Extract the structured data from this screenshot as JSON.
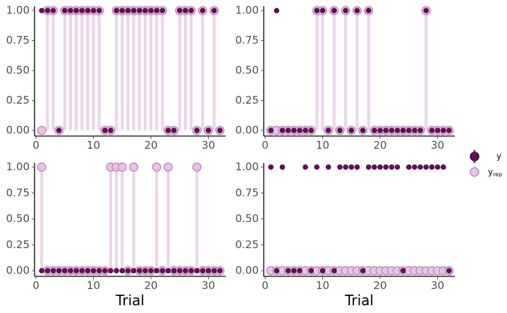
{
  "colors": {
    "y_point": "#6b0a5e",
    "y_point_stroke": "#3f0637",
    "yrep_point": "#e6c6e4",
    "yrep_point_stroke": "#c38ac0",
    "yrep_line": "#ecd3eb",
    "axis": "#000000",
    "tick_text": "#4d4d4d"
  },
  "legend": {
    "y_label": "y",
    "yrep_label_main": "y",
    "yrep_label_sub": "rep"
  },
  "chart_data": [
    {
      "type": "scatter",
      "panel": "top-left",
      "xlabel": "",
      "ylabel": "",
      "xlim": [
        0,
        33
      ],
      "ylim": [
        0,
        1
      ],
      "x_ticks": [
        0,
        10,
        20,
        30
      ],
      "y_ticks": [
        "0.00",
        "0.25",
        "0.50",
        "0.75",
        "1.00"
      ],
      "grid": false,
      "series": [
        {
          "name": "y",
          "x": [
            1,
            2,
            3,
            4,
            5,
            6,
            7,
            8,
            9,
            10,
            11,
            12,
            13,
            14,
            15,
            16,
            17,
            18,
            19,
            20,
            21,
            22,
            23,
            24,
            25,
            26,
            27,
            28,
            29,
            30,
            31,
            32
          ],
          "values": [
            1,
            1,
            1,
            0,
            1,
            1,
            1,
            1,
            1,
            1,
            1,
            0,
            0,
            1,
            1,
            1,
            1,
            1,
            1,
            1,
            1,
            1,
            0,
            0,
            1,
            1,
            1,
            0,
            1,
            0,
            1,
            0
          ]
        },
        {
          "name": "y_rep",
          "x": [
            1,
            2,
            3,
            4,
            5,
            6,
            7,
            8,
            9,
            10,
            11,
            12,
            13,
            14,
            15,
            16,
            17,
            18,
            19,
            20,
            21,
            22,
            23,
            24,
            25,
            26,
            27,
            28,
            29,
            30,
            31,
            32
          ],
          "values": [
            0,
            1,
            1,
            0,
            1,
            1,
            1,
            1,
            1,
            1,
            1,
            0,
            0,
            1,
            1,
            1,
            1,
            1,
            1,
            1,
            1,
            1,
            0,
            0,
            1,
            1,
            1,
            0,
            1,
            0,
            1,
            0
          ]
        }
      ]
    },
    {
      "type": "scatter",
      "panel": "top-right",
      "xlabel": "",
      "ylabel": "",
      "xlim": [
        0,
        33
      ],
      "ylim": [
        0,
        1
      ],
      "x_ticks": [
        0,
        10,
        20,
        30
      ],
      "y_ticks": [
        "0.00",
        "0.25",
        "0.50",
        "0.75",
        "1.00"
      ],
      "grid": false,
      "series": [
        {
          "name": "y",
          "x": [
            1,
            2,
            3,
            4,
            5,
            6,
            7,
            8,
            9,
            10,
            11,
            12,
            13,
            14,
            15,
            16,
            17,
            18,
            19,
            20,
            21,
            22,
            23,
            24,
            25,
            26,
            27,
            28,
            29,
            30,
            31,
            32
          ],
          "values": [
            0,
            1,
            0,
            0,
            0,
            0,
            0,
            0,
            1,
            1,
            0,
            1,
            0,
            1,
            0,
            1,
            0,
            1,
            0,
            0,
            0,
            0,
            0,
            0,
            0,
            0,
            0,
            1,
            0,
            0,
            0,
            0
          ]
        },
        {
          "name": "y_rep",
          "x": [
            1,
            2,
            3,
            4,
            5,
            6,
            7,
            8,
            9,
            10,
            11,
            12,
            13,
            14,
            15,
            16,
            17,
            18,
            19,
            20,
            21,
            22,
            23,
            24,
            25,
            26,
            27,
            28,
            29,
            30,
            31,
            32
          ],
          "values": [
            0,
            0,
            0,
            0,
            0,
            0,
            0,
            0,
            1,
            1,
            0,
            1,
            0,
            1,
            0,
            1,
            0,
            1,
            0,
            0,
            0,
            0,
            0,
            0,
            0,
            0,
            0,
            1,
            0,
            0,
            0,
            0
          ]
        }
      ]
    },
    {
      "type": "scatter",
      "panel": "bottom-left",
      "xlabel": "Trial",
      "ylabel": "",
      "xlim": [
        0,
        33
      ],
      "ylim": [
        0,
        1
      ],
      "x_ticks": [
        0,
        10,
        20,
        30
      ],
      "y_ticks": [
        "0.00",
        "0.25",
        "0.50",
        "0.75",
        "1.00"
      ],
      "grid": false,
      "series": [
        {
          "name": "y",
          "x": [
            1,
            2,
            3,
            4,
            5,
            6,
            7,
            8,
            9,
            10,
            11,
            12,
            13,
            14,
            15,
            16,
            17,
            18,
            19,
            20,
            21,
            22,
            23,
            24,
            25,
            26,
            27,
            28,
            29,
            30,
            31,
            32
          ],
          "values": [
            0,
            0,
            0,
            0,
            0,
            0,
            0,
            0,
            0,
            0,
            0,
            0,
            0,
            0,
            0,
            0,
            0,
            0,
            0,
            0,
            0,
            0,
            0,
            0,
            0,
            0,
            0,
            0,
            0,
            0,
            0,
            0
          ]
        },
        {
          "name": "y_rep",
          "x": [
            1,
            2,
            3,
            4,
            5,
            6,
            7,
            8,
            9,
            10,
            11,
            12,
            13,
            14,
            15,
            16,
            17,
            18,
            19,
            20,
            21,
            22,
            23,
            24,
            25,
            26,
            27,
            28,
            29,
            30,
            31,
            32
          ],
          "values": [
            1,
            0,
            0,
            0,
            0,
            0,
            0,
            0,
            0,
            0,
            0,
            0,
            1,
            1,
            1,
            0,
            1,
            0,
            0,
            0,
            1,
            0,
            1,
            0,
            0,
            0,
            0,
            1,
            0,
            0,
            0,
            0
          ]
        }
      ]
    },
    {
      "type": "scatter",
      "panel": "bottom-right",
      "xlabel": "Trial",
      "ylabel": "",
      "xlim": [
        0,
        33
      ],
      "ylim": [
        0,
        1
      ],
      "x_ticks": [
        0,
        10,
        20,
        30
      ],
      "y_ticks": [
        "0.00",
        "0.25",
        "0.50",
        "0.75",
        "1.00"
      ],
      "grid": false,
      "series": [
        {
          "name": "y",
          "x": [
            1,
            2,
            3,
            4,
            5,
            6,
            7,
            8,
            9,
            10,
            11,
            12,
            13,
            14,
            15,
            16,
            17,
            18,
            19,
            20,
            21,
            22,
            23,
            24,
            25,
            26,
            27,
            28,
            29,
            30,
            31,
            32
          ],
          "values": [
            1,
            0,
            1,
            0,
            0,
            0,
            1,
            0,
            1,
            0,
            1,
            0,
            1,
            1,
            1,
            1,
            0,
            1,
            1,
            1,
            1,
            1,
            1,
            0,
            1,
            1,
            1,
            1,
            1,
            1,
            1,
            0
          ]
        },
        {
          "name": "y_rep",
          "x": [
            1,
            2,
            3,
            4,
            5,
            6,
            7,
            8,
            9,
            10,
            11,
            12,
            13,
            14,
            15,
            16,
            17,
            18,
            19,
            20,
            21,
            22,
            23,
            24,
            25,
            26,
            27,
            28,
            29,
            30,
            31,
            32
          ],
          "values": [
            0,
            0,
            0,
            0,
            0,
            0,
            0,
            0,
            0,
            0,
            0,
            0,
            0,
            0,
            0,
            0,
            0,
            0,
            0,
            0,
            0,
            0,
            0,
            0,
            0,
            0,
            0,
            0,
            0,
            0,
            0,
            0
          ]
        }
      ]
    }
  ]
}
